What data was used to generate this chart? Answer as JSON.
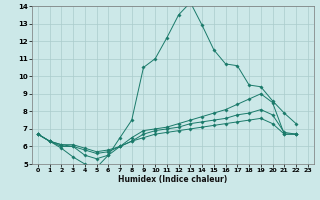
{
  "title": "",
  "xlabel": "Humidex (Indice chaleur)",
  "bg_color": "#cce8e8",
  "grid_color": "#aacccc",
  "line_color": "#1a7a6a",
  "xlim": [
    -0.5,
    23.5
  ],
  "ylim": [
    5,
    14
  ],
  "xticks": [
    0,
    1,
    2,
    3,
    4,
    5,
    6,
    7,
    8,
    9,
    10,
    11,
    12,
    13,
    14,
    15,
    16,
    17,
    18,
    19,
    20,
    21,
    22,
    23
  ],
  "yticks": [
    5,
    6,
    7,
    8,
    9,
    10,
    11,
    12,
    13,
    14
  ],
  "series": [
    [
      6.7,
      6.3,
      5.9,
      5.4,
      5.0,
      4.8,
      5.5,
      6.5,
      7.5,
      10.5,
      11.0,
      12.2,
      13.5,
      14.2,
      12.9,
      11.5,
      10.7,
      10.6,
      9.5,
      9.4,
      8.6,
      7.9,
      7.3
    ],
    [
      6.7,
      6.3,
      6.0,
      6.0,
      5.5,
      5.3,
      5.5,
      6.0,
      6.5,
      6.9,
      7.0,
      7.1,
      7.3,
      7.5,
      7.7,
      7.9,
      8.1,
      8.4,
      8.7,
      9.0,
      8.5,
      6.7,
      6.7
    ],
    [
      6.7,
      6.3,
      6.1,
      6.0,
      5.8,
      5.6,
      5.7,
      6.0,
      6.3,
      6.7,
      6.9,
      7.0,
      7.1,
      7.3,
      7.4,
      7.5,
      7.6,
      7.8,
      7.9,
      8.1,
      7.8,
      6.8,
      6.7
    ],
    [
      6.7,
      6.3,
      6.1,
      6.1,
      5.9,
      5.7,
      5.8,
      6.0,
      6.3,
      6.5,
      6.7,
      6.8,
      6.9,
      7.0,
      7.1,
      7.2,
      7.3,
      7.4,
      7.5,
      7.6,
      7.3,
      6.7,
      6.7
    ]
  ]
}
